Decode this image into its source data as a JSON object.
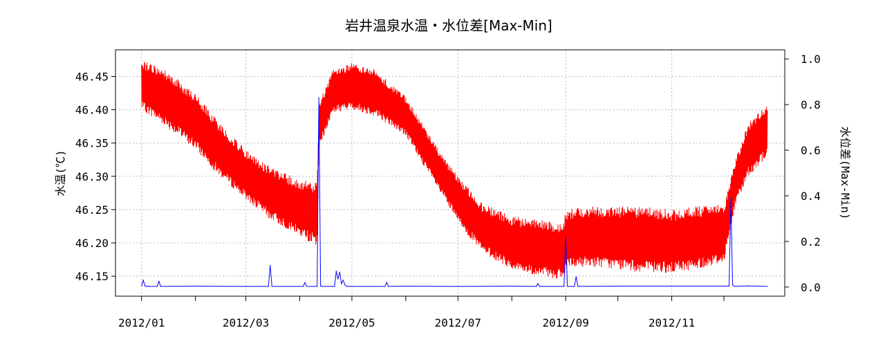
{
  "chart_data": {
    "type": "line",
    "title": "岩井温泉水温・水位差[Max-Min]",
    "ylabel_left": "水温(℃)",
    "ylabel_right": "水位差(Max-Min)",
    "x_tick_labels": [
      "2012/01",
      "2012/03",
      "2012/05",
      "2012/07",
      "2012/09",
      "2012/11"
    ],
    "x_tick_dates": [
      "2012-01-01",
      "2012-03-01",
      "2012-05-01",
      "2012-07-01",
      "2012-09-01",
      "2012-11-01"
    ],
    "x_minor_tick_dates": [
      "2012-02-01",
      "2012-04-01",
      "2012-06-01",
      "2012-08-01",
      "2012-10-01",
      "2012-12-01"
    ],
    "xlim": [
      "2011-12-17",
      "2013-01-05"
    ],
    "ylim_left": [
      46.12,
      46.49
    ],
    "yticks_left": [
      "46.15",
      "46.20",
      "46.25",
      "46.30",
      "46.35",
      "46.40",
      "46.45"
    ],
    "ylim_right": [
      -0.04,
      1.04
    ],
    "yticks_right": [
      "0.0",
      "0.2",
      "0.4",
      "0.6",
      "0.8",
      "1.0"
    ],
    "grid": true,
    "series": [
      {
        "axis": "left",
        "color": "#ff0000",
        "style": "band",
        "x": [
          "2012-01-01",
          "2012-01-15",
          "2012-02-01",
          "2012-02-15",
          "2012-03-01",
          "2012-03-15",
          "2012-04-01",
          "2012-04-11",
          "2012-04-12",
          "2012-04-20",
          "2012-05-01",
          "2012-05-15",
          "2012-06-01",
          "2012-06-15",
          "2012-07-01",
          "2012-07-15",
          "2012-08-01",
          "2012-08-15",
          "2012-08-31",
          "2012-09-01",
          "2012-09-15",
          "2012-10-01",
          "2012-10-15",
          "2012-11-01",
          "2012-11-15",
          "2012-12-01",
          "2012-12-08",
          "2012-12-15",
          "2012-12-26"
        ],
        "low": [
          46.4,
          46.375,
          46.34,
          46.3,
          46.265,
          46.235,
          46.21,
          46.195,
          46.34,
          46.395,
          46.4,
          46.39,
          46.36,
          46.3,
          46.23,
          46.185,
          46.16,
          46.15,
          46.145,
          46.16,
          46.165,
          46.16,
          46.155,
          46.155,
          46.16,
          46.17,
          46.26,
          46.3,
          46.33
        ],
        "high": [
          46.475,
          46.46,
          46.425,
          46.38,
          46.34,
          46.315,
          46.295,
          46.29,
          46.41,
          46.46,
          46.47,
          46.46,
          46.42,
          46.36,
          46.3,
          46.26,
          46.24,
          46.235,
          46.23,
          46.25,
          46.255,
          46.255,
          46.255,
          46.25,
          46.255,
          46.26,
          46.33,
          46.38,
          46.41
        ]
      },
      {
        "axis": "right",
        "color": "#0000ff",
        "style": "line",
        "x": [
          "2012-01-01",
          "2012-01-02",
          "2012-01-03",
          "2012-01-04",
          "2012-01-05",
          "2012-01-10",
          "2012-01-11",
          "2012-01-12",
          "2012-02-01",
          "2012-03-01",
          "2012-03-14",
          "2012-03-15",
          "2012-03-16",
          "2012-04-01",
          "2012-04-03",
          "2012-04-04",
          "2012-04-05",
          "2012-04-11",
          "2012-04-12",
          "2012-04-13",
          "2012-04-14",
          "2012-04-21",
          "2012-04-22",
          "2012-04-23",
          "2012-04-24",
          "2012-04-25",
          "2012-04-26",
          "2012-04-27",
          "2012-04-28",
          "2012-05-01",
          "2012-05-20",
          "2012-05-21",
          "2012-05-22",
          "2012-06-01",
          "2012-07-01",
          "2012-08-01",
          "2012-08-15",
          "2012-08-16",
          "2012-08-17",
          "2012-08-31",
          "2012-09-01",
          "2012-09-02",
          "2012-09-06",
          "2012-09-07",
          "2012-09-08",
          "2012-10-01",
          "2012-11-01",
          "2012-12-04",
          "2012-12-05",
          "2012-12-06",
          "2012-12-07",
          "2012-12-15",
          "2012-12-26"
        ],
        "y": [
          0.005,
          0.03,
          0.005,
          0.003,
          0.003,
          0.003,
          0.025,
          0.003,
          0.004,
          0.003,
          0.003,
          0.095,
          0.003,
          0.003,
          0.003,
          0.02,
          0.003,
          0.003,
          0.83,
          0.005,
          0.003,
          0.003,
          0.07,
          0.035,
          0.065,
          0.015,
          0.03,
          0.01,
          0.003,
          0.003,
          0.003,
          0.02,
          0.003,
          0.004,
          0.003,
          0.004,
          0.003,
          0.015,
          0.003,
          0.003,
          0.22,
          0.003,
          0.003,
          0.045,
          0.003,
          0.004,
          0.004,
          0.004,
          0.39,
          0.01,
          0.003,
          0.005,
          0.003
        ]
      }
    ]
  }
}
